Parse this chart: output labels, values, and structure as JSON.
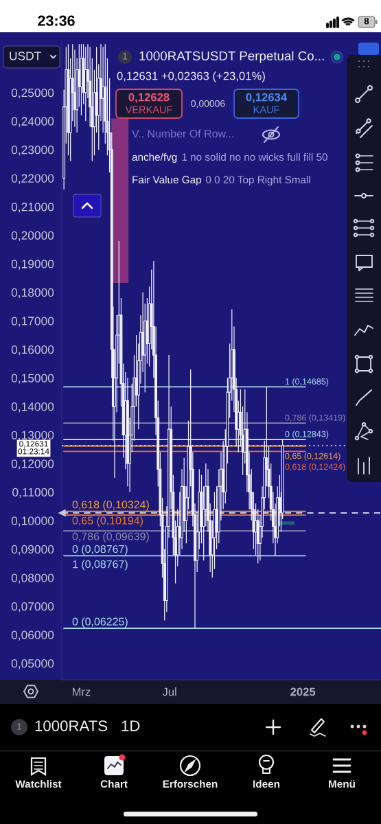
{
  "chart_data": {
    "type": "candlestick",
    "title": "1000RATSUSDT Perpetual Co...",
    "subtitle": "0,12631 +0,02363 (+23,01%)",
    "x": [
      "2024-02-06",
      "2024-02-09",
      "2024-02-12",
      "2024-02-15",
      "2024-02-18",
      "2024-02-21",
      "2024-02-24",
      "2024-02-27",
      "2024-03-01",
      "2024-03-04",
      "2024-03-07",
      "2024-03-10",
      "2024-03-13",
      "2024-03-16",
      "2024-03-19",
      "2024-03-22",
      "2024-03-25",
      "2024-03-28",
      "2024-03-31",
      "2024-04-03",
      "2024-04-06",
      "2024-04-09",
      "2024-04-12",
      "2024-04-14",
      "2024-04-16",
      "2024-04-19",
      "2024-04-22",
      "2024-04-25",
      "2024-04-28",
      "2024-05-01",
      "2024-05-04",
      "2024-05-07",
      "2024-05-10",
      "2024-05-13",
      "2024-05-16",
      "2024-05-19",
      "2024-05-22",
      "2024-05-25",
      "2024-05-28",
      "2024-05-31",
      "2024-06-03",
      "2024-06-06",
      "2024-06-09",
      "2024-06-12",
      "2024-06-15",
      "2024-06-18",
      "2024-06-21",
      "2024-06-24",
      "2024-06-27",
      "2024-06-30",
      "2024-07-03",
      "2024-07-06",
      "2024-07-09",
      "2024-07-12",
      "2024-07-15",
      "2024-07-18",
      "2024-07-21",
      "2024-07-24",
      "2024-07-27",
      "2024-07-30",
      "2024-08-02",
      "2024-08-05",
      "2024-08-08",
      "2024-08-11",
      "2024-08-14",
      "2024-08-17",
      "2024-08-20",
      "2024-08-23",
      "2024-08-26",
      "2024-08-29",
      "2024-09-01",
      "2024-09-04",
      "2024-09-07",
      "2024-09-10",
      "2024-09-13",
      "2024-09-16",
      "2024-09-19",
      "2024-09-22",
      "2024-09-25",
      "2024-09-28",
      "2024-10-01",
      "2024-10-04",
      "2024-10-07",
      "2024-10-10",
      "2024-10-13",
      "2024-10-16",
      "2024-10-19",
      "2024-10-22",
      "2024-10-25",
      "2024-10-28",
      "2024-10-31",
      "2024-11-03",
      "2024-11-06",
      "2024-11-09",
      "2024-11-12",
      "2024-11-15",
      "2024-11-18",
      "2024-11-21",
      "2024-11-24",
      "2024-11-27",
      "2024-11-30",
      "2024-12-02",
      "2024-12-04"
    ],
    "ohlc": [
      [
        0.22,
        0.251,
        0.216,
        0.245
      ],
      [
        0.245,
        0.266,
        0.232,
        0.258
      ],
      [
        0.258,
        0.267,
        0.228,
        0.236
      ],
      [
        0.236,
        0.262,
        0.226,
        0.255
      ],
      [
        0.255,
        0.267,
        0.24,
        0.25
      ],
      [
        0.25,
        0.265,
        0.238,
        0.244
      ],
      [
        0.244,
        0.262,
        0.236,
        0.258
      ],
      [
        0.258,
        0.267,
        0.245,
        0.252
      ],
      [
        0.252,
        0.267,
        0.242,
        0.262
      ],
      [
        0.262,
        0.267,
        0.246,
        0.25
      ],
      [
        0.25,
        0.266,
        0.24,
        0.258
      ],
      [
        0.258,
        0.267,
        0.248,
        0.254
      ],
      [
        0.254,
        0.266,
        0.238,
        0.245
      ],
      [
        0.245,
        0.262,
        0.226,
        0.238
      ],
      [
        0.238,
        0.258,
        0.228,
        0.25
      ],
      [
        0.25,
        0.266,
        0.236,
        0.242
      ],
      [
        0.242,
        0.26,
        0.23,
        0.255
      ],
      [
        0.255,
        0.267,
        0.24,
        0.248
      ],
      [
        0.248,
        0.266,
        0.236,
        0.252
      ],
      [
        0.252,
        0.267,
        0.232,
        0.24
      ],
      [
        0.24,
        0.262,
        0.228,
        0.236
      ],
      [
        0.236,
        0.255,
        0.222,
        0.23
      ],
      [
        0.23,
        0.236,
        0.15,
        0.16
      ],
      [
        0.16,
        0.175,
        0.128,
        0.14
      ],
      [
        0.14,
        0.16,
        0.115,
        0.15
      ],
      [
        0.15,
        0.172,
        0.138,
        0.165
      ],
      [
        0.165,
        0.198,
        0.155,
        0.172
      ],
      [
        0.172,
        0.178,
        0.14,
        0.148
      ],
      [
        0.148,
        0.155,
        0.122,
        0.13
      ],
      [
        0.13,
        0.152,
        0.118,
        0.142
      ],
      [
        0.142,
        0.15,
        0.112,
        0.12
      ],
      [
        0.12,
        0.136,
        0.11,
        0.13
      ],
      [
        0.13,
        0.148,
        0.124,
        0.14
      ],
      [
        0.14,
        0.158,
        0.128,
        0.15
      ],
      [
        0.15,
        0.165,
        0.14,
        0.144
      ],
      [
        0.144,
        0.162,
        0.132,
        0.156
      ],
      [
        0.156,
        0.172,
        0.148,
        0.166
      ],
      [
        0.166,
        0.18,
        0.152,
        0.158
      ],
      [
        0.158,
        0.176,
        0.145,
        0.17
      ],
      [
        0.17,
        0.178,
        0.155,
        0.162
      ],
      [
        0.162,
        0.182,
        0.154,
        0.176
      ],
      [
        0.176,
        0.188,
        0.16,
        0.168
      ],
      [
        0.168,
        0.191,
        0.15,
        0.158
      ],
      [
        0.158,
        0.168,
        0.13,
        0.136
      ],
      [
        0.136,
        0.142,
        0.112,
        0.118
      ],
      [
        0.118,
        0.124,
        0.098,
        0.102
      ],
      [
        0.102,
        0.108,
        0.08,
        0.085
      ],
      [
        0.085,
        0.09,
        0.065,
        0.072
      ],
      [
        0.072,
        0.105,
        0.068,
        0.098
      ],
      [
        0.098,
        0.158,
        0.094,
        0.132
      ],
      [
        0.132,
        0.14,
        0.104,
        0.11
      ],
      [
        0.11,
        0.116,
        0.088,
        0.094
      ],
      [
        0.094,
        0.1,
        0.078,
        0.088
      ],
      [
        0.088,
        0.104,
        0.084,
        0.098
      ],
      [
        0.098,
        0.11,
        0.088,
        0.094
      ],
      [
        0.094,
        0.118,
        0.09,
        0.112
      ],
      [
        0.112,
        0.122,
        0.096,
        0.1
      ],
      [
        0.1,
        0.112,
        0.092,
        0.108
      ],
      [
        0.108,
        0.135,
        0.104,
        0.126
      ],
      [
        0.126,
        0.153,
        0.112,
        0.118
      ],
      [
        0.118,
        0.124,
        0.098,
        0.102
      ],
      [
        0.102,
        0.106,
        0.06225,
        0.086
      ],
      [
        0.086,
        0.102,
        0.082,
        0.096
      ],
      [
        0.096,
        0.118,
        0.09,
        0.11
      ],
      [
        0.11,
        0.116,
        0.092,
        0.098
      ],
      [
        0.098,
        0.112,
        0.086,
        0.104
      ],
      [
        0.104,
        0.12,
        0.098,
        0.112
      ],
      [
        0.112,
        0.118,
        0.096,
        0.1
      ],
      [
        0.1,
        0.106,
        0.082,
        0.088
      ],
      [
        0.088,
        0.1,
        0.08,
        0.094
      ],
      [
        0.094,
        0.11,
        0.083,
        0.104
      ],
      [
        0.104,
        0.112,
        0.09,
        0.096
      ],
      [
        0.096,
        0.118,
        0.092,
        0.112
      ],
      [
        0.112,
        0.124,
        0.1,
        0.118
      ],
      [
        0.118,
        0.128,
        0.104,
        0.11
      ],
      [
        0.11,
        0.132,
        0.106,
        0.126
      ],
      [
        0.126,
        0.15,
        0.12,
        0.145
      ],
      [
        0.145,
        0.162,
        0.136,
        0.15
      ],
      [
        0.15,
        0.174,
        0.142,
        0.16
      ],
      [
        0.16,
        0.168,
        0.138,
        0.146
      ],
      [
        0.146,
        0.15,
        0.126,
        0.132
      ],
      [
        0.132,
        0.142,
        0.124,
        0.138
      ],
      [
        0.138,
        0.146,
        0.126,
        0.13
      ],
      [
        0.13,
        0.14,
        0.116,
        0.124
      ],
      [
        0.124,
        0.146,
        0.12,
        0.132
      ],
      [
        0.132,
        0.138,
        0.11,
        0.116
      ],
      [
        0.116,
        0.124,
        0.104,
        0.11
      ],
      [
        0.11,
        0.118,
        0.1,
        0.104
      ],
      [
        0.104,
        0.11,
        0.09,
        0.096
      ],
      [
        0.096,
        0.106,
        0.088,
        0.1
      ],
      [
        0.1,
        0.104,
        0.085,
        0.092
      ],
      [
        0.092,
        0.102,
        0.086,
        0.098
      ],
      [
        0.098,
        0.112,
        0.094,
        0.108
      ],
      [
        0.108,
        0.128,
        0.104,
        0.122
      ],
      [
        0.122,
        0.14685,
        0.112,
        0.118
      ],
      [
        0.118,
        0.126,
        0.108,
        0.112
      ],
      [
        0.112,
        0.12,
        0.1,
        0.104
      ],
      [
        0.104,
        0.11,
        0.092,
        0.098
      ],
      [
        0.098,
        0.106,
        0.08767,
        0.094
      ],
      [
        0.094,
        0.112,
        0.092,
        0.108
      ],
      [
        0.108,
        0.116,
        0.098,
        0.104
      ],
      [
        0.104,
        0.11,
        0.096,
        0.10268
      ],
      [
        0.10268,
        0.12843,
        0.1005,
        0.12631
      ]
    ],
    "color": "#f0f0f8",
    "xlim": [
      "2024-02-03",
      "2025-04-19"
    ],
    "xticks": [
      {
        "value": "2024-03-01",
        "label": "Mrz"
      },
      {
        "value": "2024-07-01",
        "label": "Jul"
      },
      {
        "value": "2025-01-01",
        "label": "2025"
      }
    ],
    "ylim": [
      0.0442,
      0.268
    ],
    "yticks": [
      {
        "value": 0.05,
        "label": "0,05000"
      },
      {
        "value": 0.06,
        "label": "0,06000"
      },
      {
        "value": 0.07,
        "label": "0,07000"
      },
      {
        "value": 0.08,
        "label": "0,08000"
      },
      {
        "value": 0.09,
        "label": "0,09000"
      },
      {
        "value": 0.1,
        "label": "0,10000"
      },
      {
        "value": 0.11,
        "label": "0,11000"
      },
      {
        "value": 0.12,
        "label": "0,12000"
      },
      {
        "value": 0.13,
        "label": "0,13000"
      },
      {
        "value": 0.14,
        "label": "0,14000"
      },
      {
        "value": 0.15,
        "label": "0,15000"
      },
      {
        "value": 0.16,
        "label": "0,16000"
      },
      {
        "value": 0.17,
        "label": "0,17000"
      },
      {
        "value": 0.18,
        "label": "0,18000"
      },
      {
        "value": 0.19,
        "label": "0,19000"
      },
      {
        "value": 0.2,
        "label": "0,20000"
      },
      {
        "value": 0.21,
        "label": "0,21000"
      },
      {
        "value": 0.22,
        "label": "0,22000"
      },
      {
        "value": 0.23,
        "label": "0,23000"
      },
      {
        "value": 0.24,
        "label": "0,24000"
      },
      {
        "value": 0.25,
        "label": "0,25000"
      }
    ],
    "grid": false,
    "ref_lines": [
      {
        "axis": "y",
        "value": 0.14685,
        "label": "1 (0,14685)",
        "color": "#a6dcec",
        "line_style": "solid"
      },
      {
        "axis": "y",
        "value": 0.13419,
        "label": "0,786 (0,13419)",
        "color": "#8a88b0",
        "line_style": "solid"
      },
      {
        "axis": "y",
        "value": 0.12843,
        "label": "0 (0,12843)",
        "color": "#a6dcec",
        "line_style": "solid"
      },
      {
        "axis": "y",
        "value": 0.12614,
        "label": "0,65 (0,12614)",
        "color": "#f2a43a",
        "line_style": "solid"
      },
      {
        "axis": "y",
        "value": 0.12424,
        "label": "0,618 (0,12424)",
        "color": "#ec6a2e",
        "line_style": "solid"
      },
      {
        "axis": "y",
        "value": 0.12631,
        "label": "0,12631\n01:23:14",
        "color": "#e8e8f0",
        "line_style": "dotted"
      },
      {
        "axis": "y",
        "value": 0.10324,
        "label": "0,618 (0,10324)",
        "color": "#f2a43a",
        "line_style": "solid"
      },
      {
        "axis": "y",
        "value": 0.10194,
        "label": "0,65 (0,10194)",
        "color": "#ec7a2e",
        "line_style": "solid"
      },
      {
        "axis": "y",
        "value": 0.09639,
        "label": "0,786 (0,09639)",
        "color": "#8a88b0",
        "line_style": "solid"
      },
      {
        "axis": "y",
        "value": 0.08767,
        "label": "0 (0,08767)",
        "color": "#a6dcec",
        "line_style": "solid"
      },
      {
        "axis": "y",
        "value": 0.06225,
        "label": "0 (0,06225)",
        "color": "#a6dcec",
        "line_style": "solid"
      },
      {
        "axis": "y",
        "value": 0.10268,
        "color": "#c8c8dc",
        "line_style": "dashed"
      }
    ],
    "bands": [
      {
        "axis": "y",
        "from": 0.1833,
        "to": 0.2409,
        "color": "#85307c"
      },
      {
        "axis": "y",
        "from": 0.0985,
        "to": 0.0997,
        "color": "#1f5d78"
      }
    ],
    "annotations": [
      "USDT",
      "1",
      "0,12628",
      "VERKAUF",
      "0,00006",
      "0,12634",
      "KAUF",
      "V.. Number Of Row...",
      "anche/fvg",
      "1 no solid no no wicks full fill 50",
      "Fair Value Gap",
      "0 0 20 Top Right Small",
      "1",
      "1000RATS",
      "1D",
      "Watchlist",
      "Chart",
      "Erforschen",
      "Ideen",
      "Menü",
      "23:36",
      "8",
      "1 (0,08767)"
    ]
  }
}
